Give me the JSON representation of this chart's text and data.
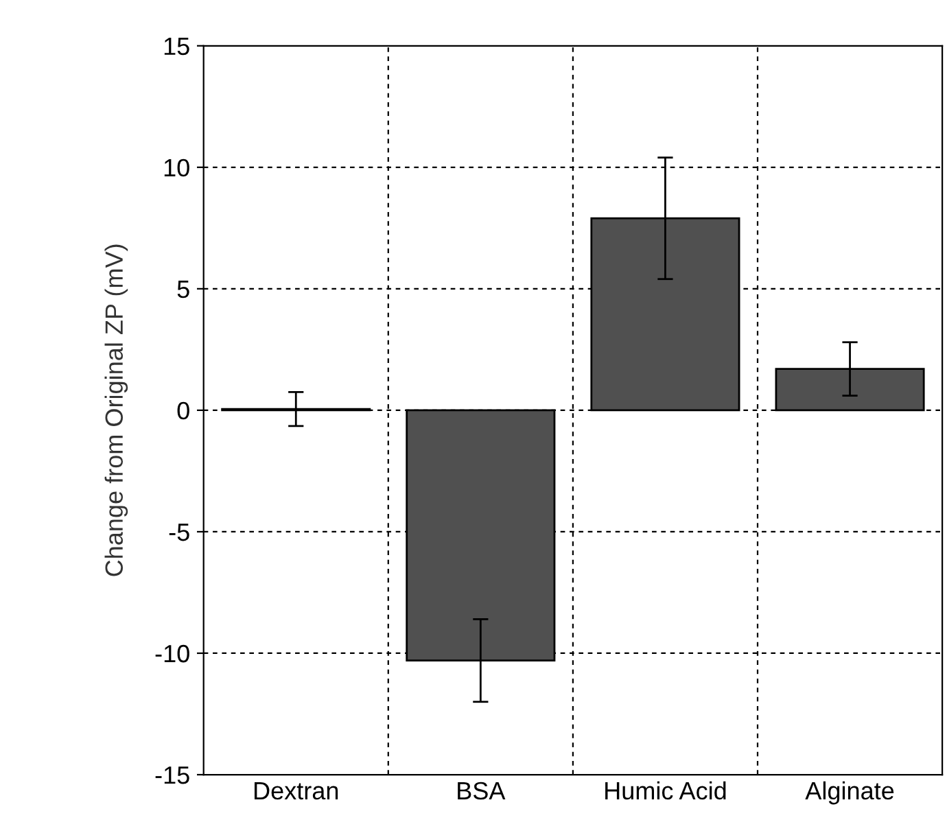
{
  "chart_data": {
    "type": "bar",
    "ylabel": "Change from Original ZP (mV)",
    "categories": [
      "Dextran",
      "BSA",
      "Humic Acid",
      "Alginate"
    ],
    "values": [
      0.05,
      -10.3,
      7.9,
      1.7
    ],
    "errors": [
      0.7,
      1.7,
      2.5,
      1.1
    ],
    "color": "#505050",
    "ylim": [
      -15,
      15
    ],
    "yticks": [
      -15,
      -10,
      -5,
      0,
      5,
      10,
      15
    ],
    "grid": true
  }
}
